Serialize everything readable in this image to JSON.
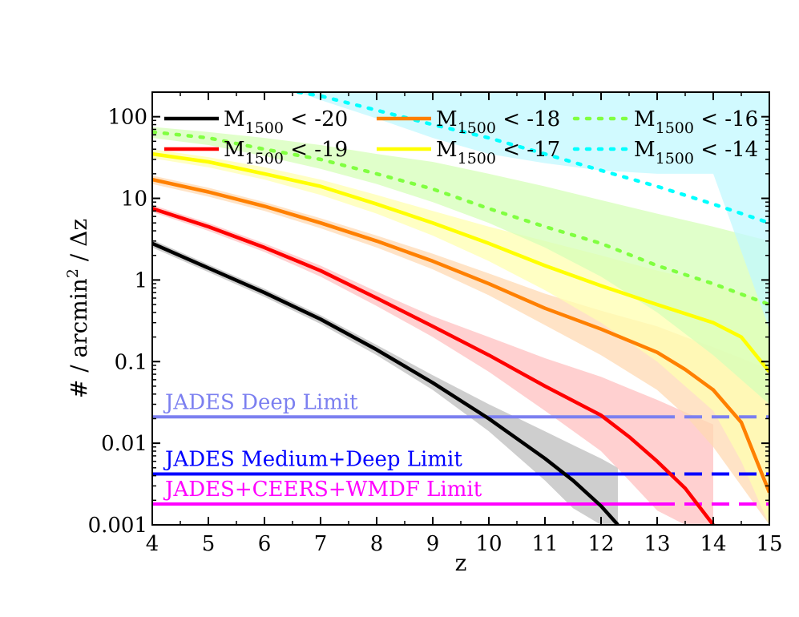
{
  "chart_data": {
    "type": "line",
    "xlabel": "z",
    "ylabel": "# / arcmin² / Δz",
    "ylabel_parts": {
      "main": "# / arcmin",
      "sup": "2",
      "tail": " / Δz"
    },
    "xlim": [
      4,
      15
    ],
    "ylim": [
      0.001,
      200
    ],
    "yscale": "log",
    "grid": false,
    "legend_position": "top",
    "x_ticks": [
      "4",
      "5",
      "6",
      "7",
      "8",
      "9",
      "10",
      "11",
      "12",
      "13",
      "14",
      "15"
    ],
    "y_ticks": [
      {
        "value": 0.001,
        "label": "0.001"
      },
      {
        "value": 0.01,
        "label": "0.01"
      },
      {
        "value": 0.1,
        "label": "0.1"
      },
      {
        "value": 1,
        "label": "1"
      },
      {
        "value": 10,
        "label": "10"
      },
      {
        "value": 100,
        "label": "100"
      }
    ],
    "series": [
      {
        "name_main": "M",
        "name_sub": "1500",
        "name_tail": " < -20",
        "color": "#000000",
        "band_color": "#bdbdbd",
        "dash": "solid",
        "x": [
          4,
          5,
          6,
          7,
          8,
          9,
          10,
          11,
          11.5,
          12,
          12.3
        ],
        "y": [
          2.8,
          1.4,
          0.7,
          0.33,
          0.14,
          0.055,
          0.02,
          0.0065,
          0.0035,
          0.0017,
          0.001
        ],
        "upper": [
          3.1,
          1.55,
          0.78,
          0.37,
          0.16,
          0.068,
          0.03,
          0.014,
          0.0095,
          0.0065,
          0.005
        ],
        "lower": [
          2.5,
          1.25,
          0.62,
          0.29,
          0.12,
          0.045,
          0.014,
          0.0035,
          0.0016,
          0.001,
          0.001
        ]
      },
      {
        "name_main": "M",
        "name_sub": "1500",
        "name_tail": " < -19",
        "color": "#ff0000",
        "band_color": "#ffc0c0",
        "dash": "solid",
        "x": [
          4,
          5,
          6,
          7,
          8,
          9,
          10,
          11,
          12,
          12.5,
          13,
          13.5,
          14
        ],
        "y": [
          7.5,
          4.5,
          2.5,
          1.3,
          0.6,
          0.27,
          0.12,
          0.05,
          0.022,
          0.012,
          0.006,
          0.0028,
          0.001
        ],
        "upper": [
          8.3,
          5.0,
          2.8,
          1.5,
          0.72,
          0.36,
          0.2,
          0.11,
          0.065,
          0.047,
          0.034,
          0.024,
          0.017
        ],
        "lower": [
          6.8,
          4.0,
          2.2,
          1.1,
          0.48,
          0.2,
          0.075,
          0.025,
          0.008,
          0.0035,
          0.0015,
          0.001,
          0.001
        ]
      },
      {
        "name_main": "M",
        "name_sub": "1500",
        "name_tail": " < -18",
        "color": "#ff8000",
        "band_color": "#ffd9b3",
        "dash": "solid",
        "x": [
          4,
          5,
          6,
          7,
          8,
          9,
          10,
          11,
          12,
          13,
          13.5,
          14,
          14.5,
          15
        ],
        "y": [
          17,
          12,
          8,
          5,
          3,
          1.7,
          0.9,
          0.45,
          0.25,
          0.13,
          0.08,
          0.045,
          0.018,
          0.0025
        ],
        "upper": [
          19,
          13.5,
          9,
          5.7,
          3.5,
          2.1,
          1.2,
          0.68,
          0.42,
          0.27,
          0.2,
          0.15,
          0.11,
          0.08
        ],
        "lower": [
          15,
          10.5,
          7,
          4.3,
          2.5,
          1.35,
          0.65,
          0.28,
          0.12,
          0.045,
          0.022,
          0.009,
          0.003,
          0.001
        ]
      },
      {
        "name_main": "M",
        "name_sub": "1500",
        "name_tail": " < -17",
        "color": "#ffff00",
        "band_color": "#ffffb0",
        "dash": "solid",
        "x": [
          4,
          5,
          6,
          7,
          8,
          9,
          10,
          11,
          12,
          13,
          14,
          14.5,
          15
        ],
        "y": [
          35,
          28,
          20,
          14,
          8.5,
          5,
          2.8,
          1.5,
          0.85,
          0.5,
          0.3,
          0.2,
          0.075
        ],
        "upper": [
          40,
          32,
          24,
          17,
          11,
          7,
          4.5,
          3,
          2,
          1.3,
          0.9,
          0.7,
          0.55
        ],
        "lower": [
          31,
          24,
          17,
          11,
          6.5,
          3.5,
          1.7,
          0.75,
          0.3,
          0.1,
          0.025,
          0.006,
          0.001
        ]
      },
      {
        "name_main": "M",
        "name_sub": "1500",
        "name_tail": " < -16",
        "color": "#80ff40",
        "band_color": "#d6ffb8",
        "dash": "dotted",
        "x": [
          4,
          5,
          6,
          7,
          8,
          9,
          10,
          11,
          12,
          13,
          14,
          15
        ],
        "y": [
          65,
          55,
          40,
          30,
          20,
          13,
          7.5,
          4.5,
          2.8,
          1.5,
          0.9,
          0.5
        ],
        "upper": [
          75,
          65,
          55,
          45,
          35,
          28,
          20,
          14,
          9.5,
          6.5,
          4.5,
          3
        ],
        "lower": [
          55,
          45,
          33,
          23,
          15,
          9,
          5,
          2.5,
          1.1,
          0.4,
          0.12,
          0.03
        ]
      },
      {
        "name_main": "M",
        "name_sub": "1500",
        "name_tail": " < -14",
        "color": "#00ffff",
        "band_color": "#c2f8ff",
        "dash": "dotted",
        "x": [
          6.6,
          7,
          8,
          9,
          10,
          11,
          12,
          13,
          14,
          15
        ],
        "y": [
          200,
          180,
          120,
          80,
          55,
          35,
          22,
          14,
          8.5,
          5
        ],
        "upper": [
          200,
          200,
          200,
          200,
          200,
          200,
          200,
          200,
          200,
          200
        ],
        "lower": [
          200,
          160,
          95,
          55,
          35,
          27,
          22,
          20,
          20,
          0.25
        ]
      }
    ],
    "limits": [
      {
        "label": "JADES Deep Limit",
        "value": 0.021,
        "color": "#7b7ff0",
        "solid_until": 13.0
      },
      {
        "label": "JADES Medium+Deep Limit",
        "value": 0.0042,
        "color": "#0000ff",
        "solid_until": 13.0
      },
      {
        "label": "JADES+CEERS+WMDF Limit",
        "value": 0.0018,
        "color": "#ff00ff",
        "solid_until": 13.0
      }
    ]
  }
}
